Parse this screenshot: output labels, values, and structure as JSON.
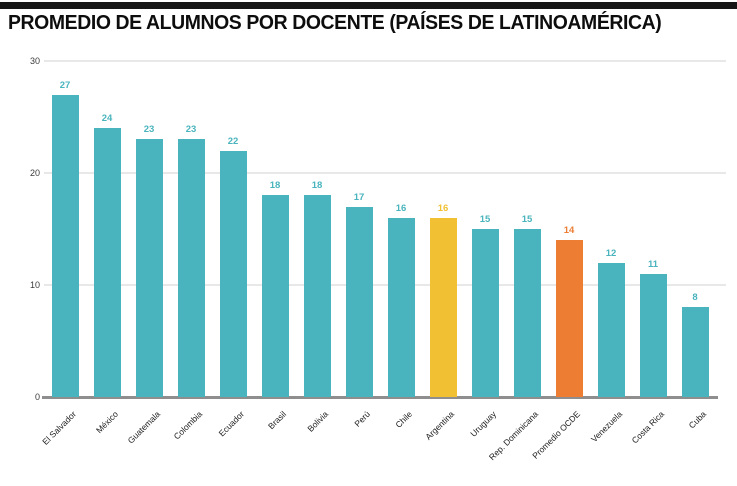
{
  "chart_data": {
    "type": "bar",
    "title": "PROMEDIO DE ALUMNOS POR DOCENTE (PAÍSES DE LATINOAMÉRICA)",
    "categories": [
      "El Salvador",
      "México",
      "Guatemala",
      "Colombia",
      "Ecuador",
      "Brasil",
      "Bolivia",
      "Perú",
      "Chile",
      "Argentina",
      "Uruguay",
      "Rep. Dominicana",
      "Promedio OCDE",
      "Venezuela",
      "Costa Rica",
      "Cuba"
    ],
    "values": [
      27,
      24,
      23,
      23,
      22,
      18,
      18,
      17,
      16,
      16,
      15,
      15,
      14,
      12,
      11,
      8
    ],
    "bar_colors": [
      "#49b4bd",
      "#49b4bd",
      "#49b4bd",
      "#49b4bd",
      "#49b4bd",
      "#49b4bd",
      "#49b4bd",
      "#49b4bd",
      "#49b4bd",
      "#f1c133",
      "#49b4bd",
      "#49b4bd",
      "#ec7d33",
      "#49b4bd",
      "#49b4bd",
      "#49b4bd"
    ],
    "highlighted_bars": [
      {
        "category": "Argentina",
        "color": "#f1c133"
      },
      {
        "category": "Promedio OCDE",
        "color": "#ec7d33"
      }
    ],
    "value_labels_shown": true,
    "xlabel": "",
    "ylabel": "",
    "ylim": [
      0,
      30
    ],
    "yticks": [
      0,
      10,
      20,
      30
    ],
    "grid": true,
    "legend": "none",
    "x_tick_rotation_deg": 45
  },
  "style": {
    "bar_default_color": "#49b4bd",
    "gridline_color": "#e8e8e8",
    "axis_line_color": "#8e8e8e",
    "top_rule_color": "#161616",
    "tick_label_color": "#3c3c3c",
    "category_label_color": "#222222",
    "title_color": "#0d0d0d",
    "background_color": "#ffffff"
  }
}
